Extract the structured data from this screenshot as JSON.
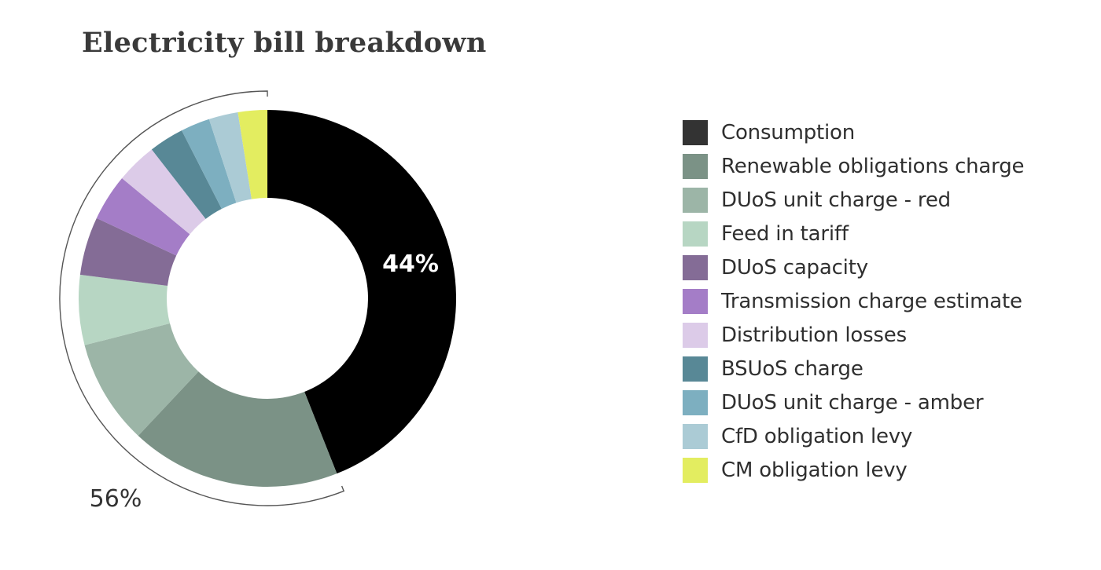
{
  "title": "Electricity bill breakdown",
  "chart_data": {
    "type": "pie",
    "variant": "donut",
    "title": "Electricity bill breakdown",
    "legend_position": "right",
    "slices": [
      {
        "label": "Consumption",
        "value": 44,
        "color": "#000000",
        "legend_color": "#333333"
      },
      {
        "label": "Renewable obligations charge",
        "value": 18,
        "color": "#7b9286"
      },
      {
        "label": "DUoS unit charge - red",
        "value": 9,
        "color": "#9cb5a7"
      },
      {
        "label": "Feed in tariff",
        "value": 6,
        "color": "#b7d6c3"
      },
      {
        "label": "DUoS capacity",
        "value": 5,
        "color": "#846c96"
      },
      {
        "label": "Transmission charge estimate",
        "value": 4,
        "color": "#a47dc7"
      },
      {
        "label": "Distribution losses",
        "value": 3.5,
        "color": "#dccbe8"
      },
      {
        "label": "BSUoS charge",
        "value": 3,
        "color": "#588896"
      },
      {
        "label": "DUoS unit charge - amber",
        "value": 2.5,
        "color": "#7dafc0"
      },
      {
        "label": "CfD obligation levy",
        "value": 2.5,
        "color": "#abcbd5"
      },
      {
        "label": "CM obligation levy",
        "value": 2.5,
        "color": "#e3ed60"
      }
    ],
    "annotations": [
      {
        "text": "44%",
        "refers_to": "Consumption"
      },
      {
        "text": "56%",
        "refers_to": "all other charges"
      }
    ]
  }
}
